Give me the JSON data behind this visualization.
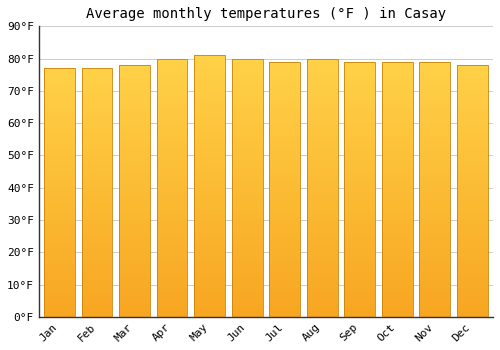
{
  "title": "Average monthly temperatures (°F ) in Casay",
  "months": [
    "Jan",
    "Feb",
    "Mar",
    "Apr",
    "May",
    "Jun",
    "Jul",
    "Aug",
    "Sep",
    "Oct",
    "Nov",
    "Dec"
  ],
  "values": [
    77,
    77,
    78,
    80,
    81,
    80,
    79,
    80,
    79,
    79,
    79,
    78
  ],
  "ylim": [
    0,
    90
  ],
  "yticks": [
    0,
    10,
    20,
    30,
    40,
    50,
    60,
    70,
    80,
    90
  ],
  "ytick_labels": [
    "0°F",
    "10°F",
    "20°F",
    "30°F",
    "40°F",
    "50°F",
    "60°F",
    "70°F",
    "80°F",
    "90°F"
  ],
  "bar_color_top": "#FFC84A",
  "bar_color_bottom": "#F5A623",
  "bar_edge_color": "#C8820A",
  "background_color": "#FFFFFF",
  "plot_bg_color": "#FFFFFF",
  "grid_color": "#CCCCCC",
  "title_fontsize": 10,
  "tick_fontsize": 8
}
